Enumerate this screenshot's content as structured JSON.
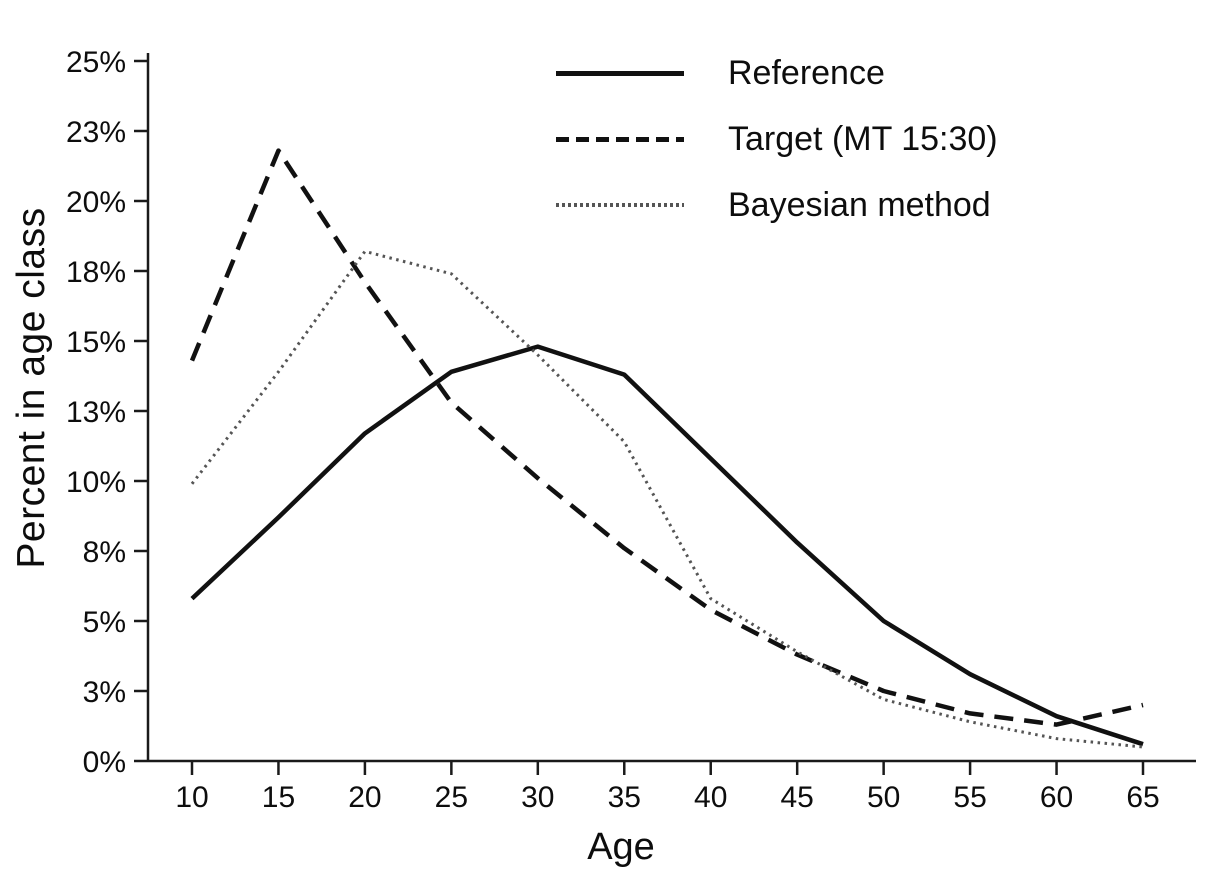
{
  "chart_data": {
    "type": "line",
    "title": "",
    "xlabel": "Age",
    "ylabel": "Percent in age class",
    "x": [
      10,
      15,
      20,
      25,
      30,
      35,
      40,
      45,
      50,
      55,
      60,
      65
    ],
    "x_tick_labels": [
      "10",
      "15",
      "20",
      "25",
      "30",
      "35",
      "40",
      "45",
      "50",
      "55",
      "60",
      "65"
    ],
    "y_ticks": [
      0,
      2.5,
      5,
      7.5,
      10,
      12.5,
      15,
      17.5,
      20,
      22.5,
      25
    ],
    "y_tick_labels": [
      "0%",
      "3%",
      "5%",
      "8%",
      "10%",
      "13%",
      "15%",
      "18%",
      "20%",
      "23%",
      "25%"
    ],
    "xlim": [
      10,
      65
    ],
    "ylim": [
      0,
      25
    ],
    "grid": false,
    "legend_position": "top-center",
    "axis_color": "#1a1a1a",
    "series": [
      {
        "name": "Reference",
        "style": "solid",
        "color": "#111111",
        "values": [
          5.8,
          8.7,
          11.7,
          13.9,
          14.8,
          13.8,
          10.8,
          7.8,
          5.0,
          3.1,
          1.6,
          0.6
        ]
      },
      {
        "name": "Target (MT 15:30)",
        "style": "dashed",
        "color": "#111111",
        "values": [
          14.3,
          21.8,
          17.1,
          12.8,
          10.1,
          7.6,
          5.4,
          3.8,
          2.5,
          1.7,
          1.3,
          2.0
        ]
      },
      {
        "name": "Bayesian method",
        "style": "dotted",
        "color": "#555555",
        "values": [
          9.9,
          13.9,
          18.2,
          17.4,
          14.5,
          11.4,
          5.8,
          3.9,
          2.2,
          1.4,
          0.8,
          0.5
        ]
      }
    ]
  }
}
